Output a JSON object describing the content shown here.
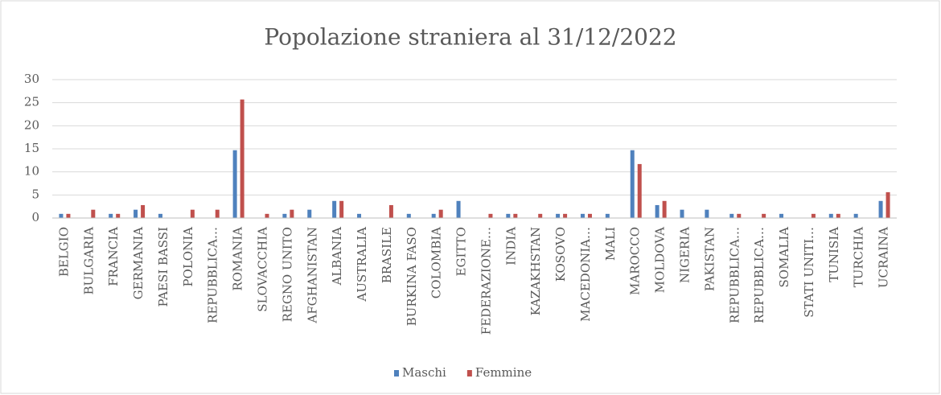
{
  "chart_data": {
    "type": "bar",
    "title": "Popolazione straniera al 31/12/2022",
    "categories": [
      "BELGIO",
      "BULGARIA",
      "FRANCIA",
      "GERMANIA",
      "PAESI BASSI",
      "POLONIA",
      "REPUBBLICA…",
      "ROMANIA",
      "SLOVACCHIA",
      "REGNO UNITO",
      "AFGHANISTAN",
      "ALBANIA",
      "AUSTRALIA",
      "BRASILE",
      "BURKINA FASO",
      "COLOMBIA",
      "EGITTO",
      "FEDERAZIONE…",
      "INDIA",
      "KAZAKHSTAN",
      "KOSOVO",
      "MACEDONIA…",
      "MALI",
      "MAROCCO",
      "MOLDOVA",
      "NIGERIA",
      "PAKISTAN",
      "REPUBBLICA…",
      "REPUBBLICA…",
      "SOMALIA",
      "STATI UNITI…",
      "TUNISIA",
      "TURCHIA",
      "UCRAINA"
    ],
    "series": [
      {
        "name": "Maschi",
        "color": "#4f81bd",
        "values": [
          0.9,
          0,
          0.9,
          1.8,
          0.9,
          0,
          0,
          14.7,
          0,
          0.9,
          1.8,
          3.7,
          0.9,
          0,
          0.9,
          0.9,
          3.7,
          0,
          0.9,
          0,
          0.9,
          0.9,
          0.9,
          14.7,
          2.8,
          1.8,
          1.8,
          0.9,
          0,
          0.9,
          0,
          0.9,
          0.9,
          3.7
        ]
      },
      {
        "name": "Femmine",
        "color": "#c0504d",
        "values": [
          0.9,
          1.8,
          0.9,
          2.8,
          0,
          1.8,
          1.8,
          25.7,
          0.9,
          1.8,
          0,
          3.7,
          0,
          2.8,
          0,
          1.8,
          0,
          0.9,
          0.9,
          0.9,
          0.9,
          0.9,
          0,
          11.7,
          3.7,
          0,
          0,
          0.9,
          0.9,
          0,
          0.9,
          0.9,
          0,
          5.6
        ]
      }
    ],
    "ylim": [
      0,
      30
    ],
    "yticks": [
      0,
      5,
      10,
      15,
      20,
      25,
      30
    ],
    "grid": true,
    "legend": "bottom"
  }
}
